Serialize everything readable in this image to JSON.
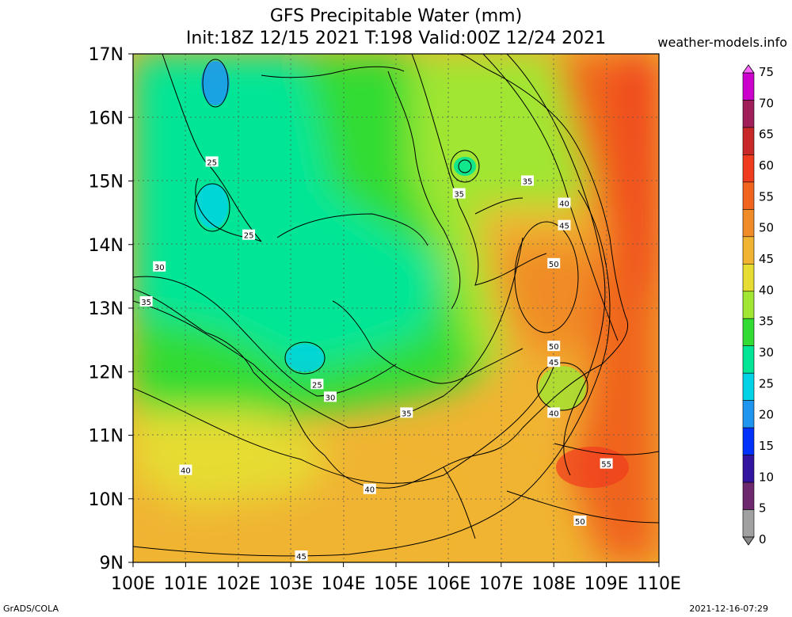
{
  "header": {
    "title_line1": "GFS Precipitable Water (mm)",
    "title_line2": "Init:18Z 12/15 2021 T:198 Valid:00Z 12/24 2021",
    "site": "weather-models.info"
  },
  "footer": {
    "left": "GrADS/COLA",
    "right": "2021-12-16-07:29"
  },
  "map": {
    "lon_labels": [
      "100E",
      "101E",
      "102E",
      "103E",
      "104E",
      "105E",
      "106E",
      "107E",
      "108E",
      "109E",
      "110E"
    ],
    "lat_labels": [
      "17N",
      "16N",
      "15N",
      "14N",
      "13N",
      "12N",
      "11N",
      "10N",
      "9N"
    ],
    "contour_labels": [
      {
        "text": "25",
        "lon": 101.5,
        "lat": 15.3
      },
      {
        "text": "25",
        "lon": 102.2,
        "lat": 14.15
      },
      {
        "text": "30",
        "lon": 100.5,
        "lat": 13.65
      },
      {
        "text": "35",
        "lon": 100.25,
        "lat": 13.1
      },
      {
        "text": "25",
        "lon": 103.5,
        "lat": 11.8
      },
      {
        "text": "30",
        "lon": 103.75,
        "lat": 11.6
      },
      {
        "text": "35",
        "lon": 105.2,
        "lat": 11.35
      },
      {
        "text": "40",
        "lon": 101.0,
        "lat": 10.45
      },
      {
        "text": "40",
        "lon": 104.5,
        "lat": 10.15
      },
      {
        "text": "45",
        "lon": 103.2,
        "lat": 9.1
      },
      {
        "text": "35",
        "lon": 106.2,
        "lat": 14.8
      },
      {
        "text": "35",
        "lon": 107.5,
        "lat": 15.0
      },
      {
        "text": "40",
        "lon": 108.2,
        "lat": 14.65
      },
      {
        "text": "45",
        "lon": 108.2,
        "lat": 14.3
      },
      {
        "text": "50",
        "lon": 108.0,
        "lat": 13.7
      },
      {
        "text": "50",
        "lon": 108.0,
        "lat": 12.4
      },
      {
        "text": "45",
        "lon": 108.0,
        "lat": 12.15
      },
      {
        "text": "40",
        "lon": 108.0,
        "lat": 11.35
      },
      {
        "text": "55",
        "lon": 109.0,
        "lat": 10.55
      },
      {
        "text": "50",
        "lon": 108.5,
        "lat": 9.65
      }
    ]
  },
  "colorbar": {
    "labels": [
      "75",
      "70",
      "65",
      "60",
      "55",
      "50",
      "45",
      "40",
      "35",
      "30",
      "25",
      "20",
      "15",
      "10",
      "5",
      "0"
    ],
    "colors": [
      "#cc00cc",
      "#a01e5a",
      "#c82828",
      "#f03c1e",
      "#f0641e",
      "#f08c28",
      "#f0b432",
      "#e6dc32",
      "#a0e632",
      "#32dc32",
      "#00e696",
      "#00d2e6",
      "#1e96f0",
      "#0032ff",
      "#3214a0",
      "#6e286e",
      "#a0a0a0"
    ]
  }
}
